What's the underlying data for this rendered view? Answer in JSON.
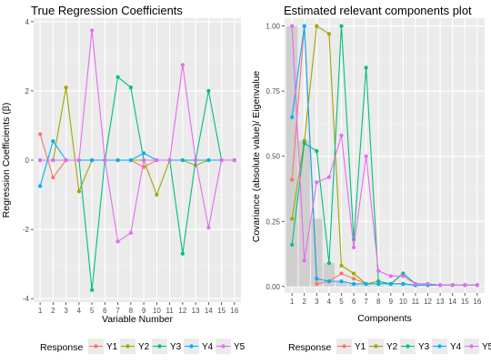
{
  "colors": {
    "panel_bg": "#ebebeb",
    "grid_major": "#ffffff",
    "grid_minor": "#f5f5f5",
    "bar_fill": "#cccccc",
    "Y1": "#f8766d",
    "Y2": "#a3a500",
    "Y3": "#00bf7d",
    "Y4": "#00b0f6",
    "Y5": "#e76bf3"
  },
  "legend": {
    "title": "Response",
    "items": [
      "Y1",
      "Y2",
      "Y3",
      "Y4",
      "Y5"
    ]
  },
  "chart_data": [
    {
      "type": "line",
      "title": "True Regression Coefficients",
      "xlabel": "Variable Number",
      "ylabel": "Regression Coefficients (β)",
      "x": [
        1,
        2,
        3,
        4,
        5,
        6,
        7,
        8,
        9,
        10,
        11,
        12,
        13,
        14,
        15,
        16
      ],
      "xlim": [
        0.5,
        16.5
      ],
      "ylim": [
        -4.1,
        4.1
      ],
      "yticks": [
        -4,
        -2,
        0,
        2,
        4
      ],
      "xticks": [
        "1",
        "2",
        "3",
        "4",
        "5",
        "6",
        "7",
        "8",
        "9",
        "10",
        "11",
        "12",
        "13",
        "14",
        "15",
        "16"
      ],
      "yticklabels": [
        "-4",
        "-2",
        "0",
        "2",
        "4"
      ],
      "grid": true,
      "series": [
        {
          "name": "Y1",
          "values": [
            0.75,
            -0.5,
            0,
            0,
            0,
            0,
            0,
            0,
            -0.2,
            0,
            0,
            0,
            0,
            0,
            0,
            0
          ]
        },
        {
          "name": "Y2",
          "values": [
            0,
            0,
            2.1,
            -0.9,
            0,
            0,
            0,
            0,
            0,
            -1.0,
            0,
            0,
            -0.15,
            0,
            0,
            0
          ]
        },
        {
          "name": "Y3",
          "values": [
            0,
            0,
            0,
            0,
            -3.75,
            0,
            2.4,
            2.1,
            0,
            0,
            0,
            -2.7,
            0,
            2.0,
            0,
            0
          ]
        },
        {
          "name": "Y4",
          "values": [
            -0.75,
            0.55,
            0,
            0,
            0,
            0,
            0,
            0,
            0.2,
            0,
            0,
            0,
            0,
            0,
            0,
            0
          ]
        },
        {
          "name": "Y5",
          "values": [
            0,
            0,
            0,
            0,
            3.75,
            0,
            -2.35,
            -2.1,
            0,
            0,
            0,
            2.75,
            0,
            -1.95,
            0,
            0
          ]
        }
      ]
    },
    {
      "type": "line",
      "title": "Estimated relevant components plot",
      "xlabel": "Components",
      "ylabel": "Covariance (absolute value)/ Eigenvalue",
      "x": [
        1,
        2,
        3,
        4,
        5,
        6,
        7,
        8,
        9,
        10,
        11,
        12,
        13,
        14,
        15,
        16
      ],
      "xlim": [
        0.4,
        16.6
      ],
      "ylim": [
        -0.025,
        1.03
      ],
      "yticks": [
        0,
        0.25,
        0.5,
        0.75,
        1
      ],
      "xticks": [
        "1",
        "2",
        "3",
        "4",
        "5",
        "6",
        "7",
        "8",
        "9",
        "10",
        "11",
        "12",
        "13",
        "14",
        "15",
        "16"
      ],
      "yticklabels": [
        "0.00",
        "0.25",
        "0.50",
        "0.75",
        "1.00"
      ],
      "grid": true,
      "bars": [
        1.0,
        0.56,
        0.26,
        0.09,
        0.02,
        0.01,
        0.005,
        0.004,
        0.003,
        0.002,
        0.002,
        0.001,
        0.001,
        0.001,
        0.001,
        0.001
      ],
      "series": [
        {
          "name": "Y1",
          "values": [
            0.41,
            1.0,
            0.01,
            0.02,
            0.05,
            0.03,
            0.01,
            0.01,
            0.01,
            0.01,
            0.005,
            0.005,
            0.005,
            0.005,
            0.005,
            0.005
          ]
        },
        {
          "name": "Y2",
          "values": [
            0.26,
            0.56,
            1.0,
            0.97,
            0.08,
            0.05,
            0.01,
            0.02,
            0.01,
            0.01,
            0.005,
            0.005,
            0.005,
            0.005,
            0.005,
            0.005
          ]
        },
        {
          "name": "Y3",
          "values": [
            0.16,
            0.55,
            0.52,
            0.09,
            1.0,
            0.18,
            0.84,
            0.02,
            0.01,
            0.05,
            0.01,
            0.01,
            0.005,
            0.005,
            0.005,
            0.005
          ]
        },
        {
          "name": "Y4",
          "values": [
            0.65,
            1.0,
            0.03,
            0.02,
            0.02,
            0.01,
            0.01,
            0.01,
            0.01,
            0.01,
            0.005,
            0.005,
            0.005,
            0.005,
            0.005,
            0.005
          ]
        },
        {
          "name": "Y5",
          "values": [
            1.0,
            0.1,
            0.4,
            0.42,
            0.58,
            0.15,
            0.5,
            0.06,
            0.04,
            0.04,
            0.01,
            0.01,
            0.005,
            0.005,
            0.005,
            0.005
          ]
        }
      ]
    }
  ]
}
